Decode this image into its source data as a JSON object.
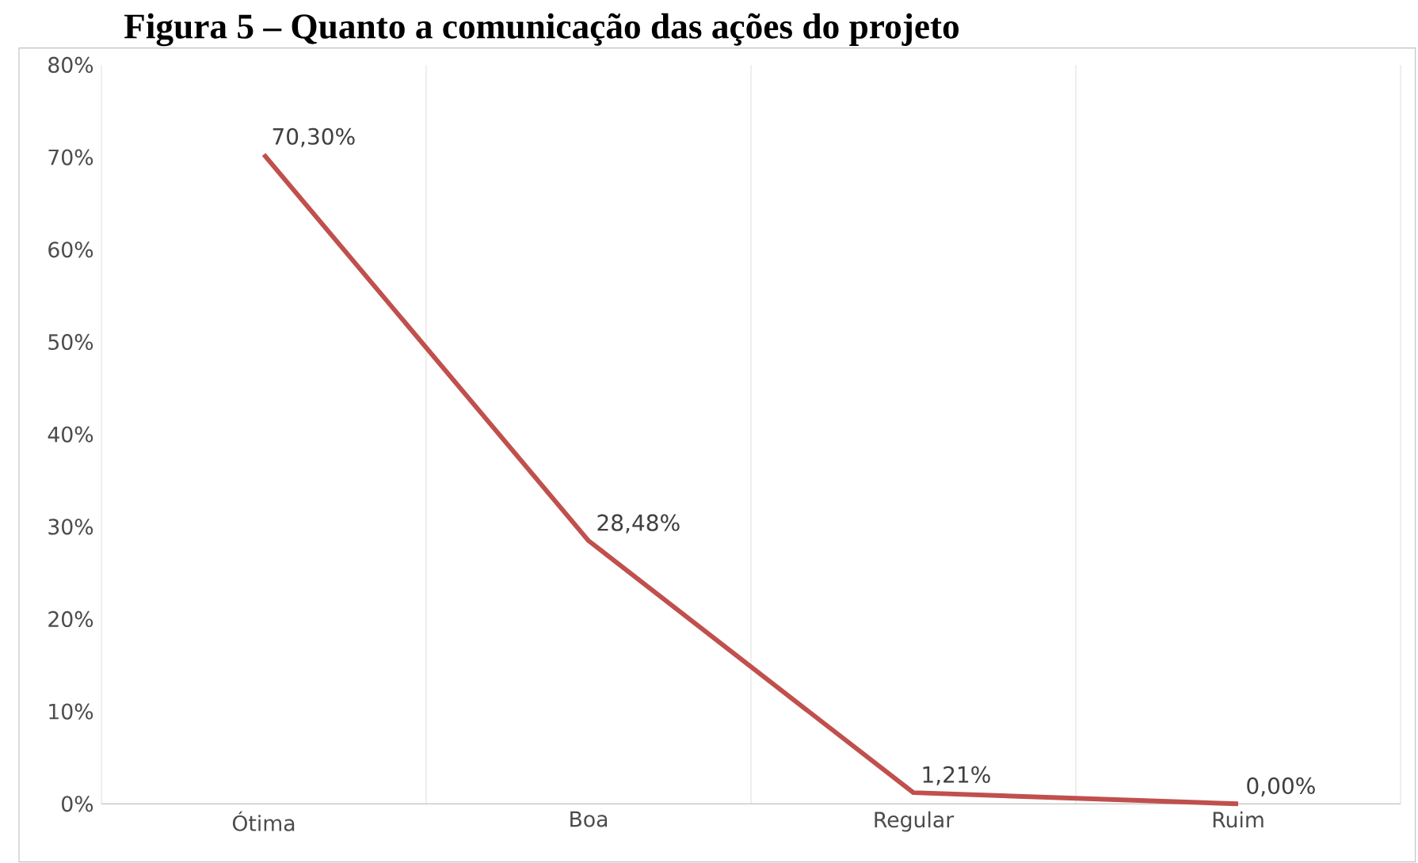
{
  "chart_data": {
    "type": "line",
    "title": "Figura 5 – Quanto a comunicação das ações do projeto",
    "categories": [
      "Ótima",
      "Boa",
      "Regular",
      "Ruim"
    ],
    "series": [
      {
        "color": "#c0504d",
        "values": [
          70.3,
          28.48,
          1.21,
          0.0
        ],
        "value_labels": [
          "70,30%",
          "28,48%",
          "1,21%",
          "0,00%"
        ]
      }
    ],
    "ylim": [
      0,
      80
    ],
    "yticks": [
      {
        "value": 0,
        "label": "0%"
      },
      {
        "value": 10,
        "label": "10%"
      },
      {
        "value": 20,
        "label": "20%"
      },
      {
        "value": 30,
        "label": "30%"
      },
      {
        "value": 40,
        "label": "40%"
      },
      {
        "value": 50,
        "label": "50%"
      },
      {
        "value": 60,
        "label": "60%"
      },
      {
        "value": 70,
        "label": "70%"
      },
      {
        "value": 80,
        "label": "80%"
      }
    ],
    "grid": "x",
    "marker": "none",
    "line_style": "solid"
  }
}
